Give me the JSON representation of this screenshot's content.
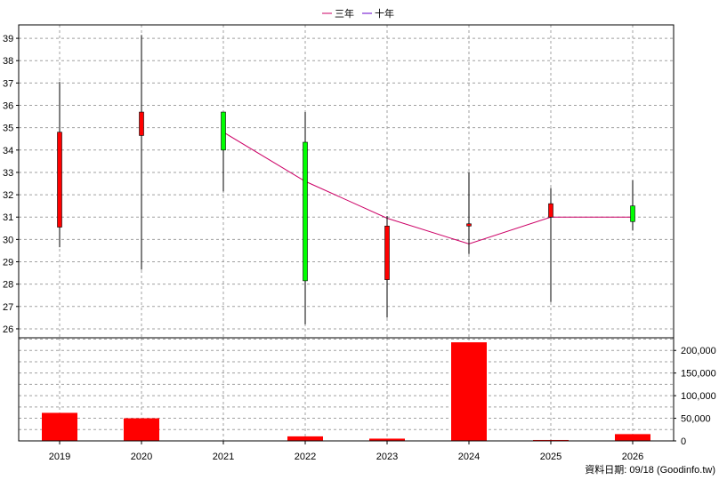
{
  "chart_data": [
    {
      "type": "candlestick",
      "legend": [
        {
          "name": "三年",
          "color": "#cc0066"
        },
        {
          "name": "十年",
          "color": "#6600cc"
        }
      ],
      "legend_position": "top-center",
      "categories": [
        "2019",
        "2020",
        "2021",
        "2022",
        "2023",
        "2024",
        "2025",
        "2026"
      ],
      "ylim": [
        25.6,
        39.6
      ],
      "yticks": [
        26,
        27,
        28,
        29,
        30,
        31,
        32,
        33,
        34,
        35,
        36,
        37,
        38,
        39
      ],
      "candles": [
        {
          "x": "2019",
          "open": 30.55,
          "close": 34.8,
          "high": 37.05,
          "low": 29.65,
          "color": "#ff0000"
        },
        {
          "x": "2020",
          "open": 34.65,
          "close": 35.7,
          "high": 39.15,
          "low": 28.65,
          "color": "#ff0000"
        },
        {
          "x": "2021",
          "open": 35.7,
          "close": 34.0,
          "high": 35.7,
          "low": 32.15,
          "color": "#00ff00"
        },
        {
          "x": "2022",
          "open": 34.35,
          "close": 28.15,
          "high": 35.7,
          "low": 26.2,
          "color": "#00ff00"
        },
        {
          "x": "2023",
          "open": 28.2,
          "close": 30.6,
          "high": 31.05,
          "low": 26.5,
          "color": "#ff0000"
        },
        {
          "x": "2024",
          "open": 30.6,
          "close": 30.7,
          "high": 33.0,
          "low": 29.35,
          "color": "#ff0000"
        },
        {
          "x": "2025",
          "open": 31.0,
          "close": 31.6,
          "high": 32.3,
          "low": 27.2,
          "color": "#ff0000"
        },
        {
          "x": "2026",
          "open": 31.5,
          "close": 30.8,
          "high": 32.65,
          "low": 30.4,
          "color": "#00ff00"
        }
      ],
      "series": [
        {
          "name": "三年",
          "x": [
            "2021",
            "2022",
            "2023",
            "2024",
            "2025",
            "2026"
          ],
          "values": [
            34.8,
            32.6,
            30.95,
            29.8,
            31.0,
            31.0
          ],
          "color": "#cc0066"
        }
      ],
      "grid": true
    },
    {
      "type": "bar",
      "categories": [
        "2019",
        "2020",
        "2021",
        "2022",
        "2023",
        "2024",
        "2025",
        "2026"
      ],
      "values": [
        62000,
        50000,
        0,
        10000,
        5000,
        218000,
        2000,
        15000
      ],
      "ylim": [
        0,
        228000
      ],
      "yticks": [
        0,
        50000,
        100000,
        150000,
        200000
      ],
      "ytick_labels": [
        "0",
        "50,000",
        "100,000",
        "150,000",
        "200,000"
      ],
      "color": "#ff0000",
      "grid": true
    }
  ],
  "footer": {
    "source": "資料日期: 09/18  (Goodinfo.tw)"
  }
}
